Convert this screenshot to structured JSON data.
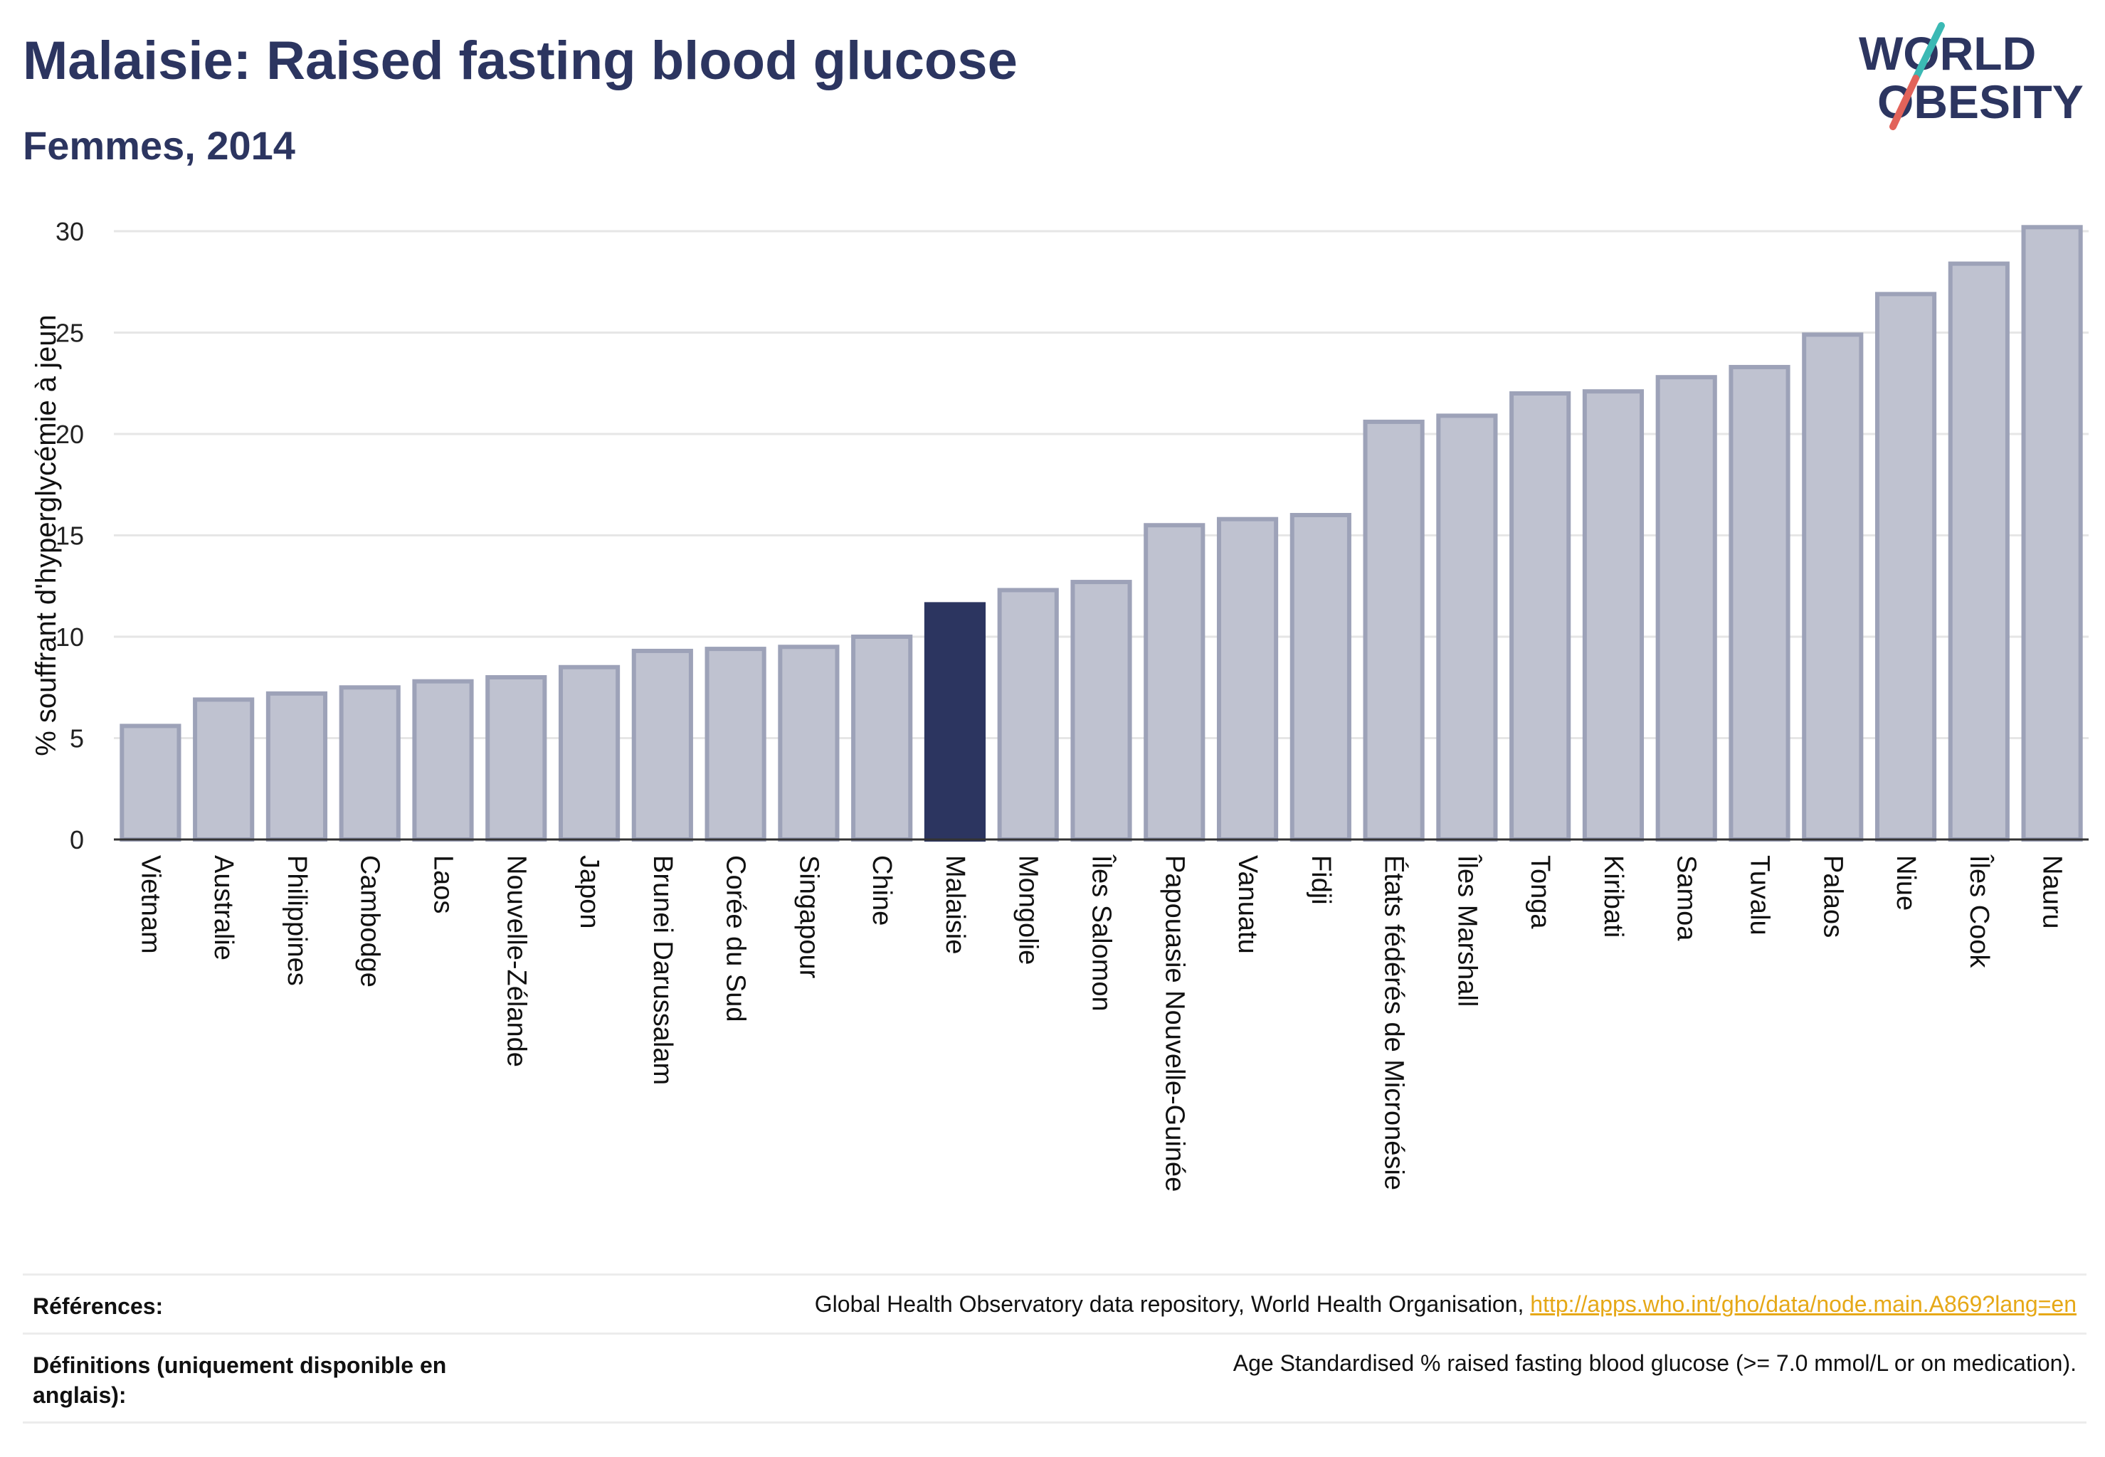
{
  "header": {
    "title": "Malaisie: Raised fasting blood glucose",
    "subtitle": "Femmes, 2014"
  },
  "logo": {
    "line1": "WORLD",
    "line2": "OBESITY"
  },
  "colors": {
    "highlight": "#2c3560",
    "bar_fill": "#bfc2d0",
    "bar_stroke": "#9da2b8",
    "grid": "#e6e6e6",
    "logo_text": "#2c3560",
    "logo_slash_teal": "#3bb9b4",
    "logo_slash_red": "#e2635a"
  },
  "chart_data": {
    "type": "bar",
    "title": "Malaisie: Raised fasting blood glucose",
    "subtitle": "Femmes, 2014",
    "xlabel": "",
    "ylabel": "% souffrant d'hyperglycémie à jeun",
    "ylim": [
      0,
      30
    ],
    "yticks": [
      0,
      5,
      10,
      15,
      20,
      25,
      30
    ],
    "grid": true,
    "highlight_category": "Malaisie",
    "categories": [
      "Vietnam",
      "Australie",
      "Philippines",
      "Cambodge",
      "Laos",
      "Nouvelle-Zélande",
      "Japon",
      "Brunei Darussalam",
      "Corée du Sud",
      "Singapour",
      "Chine",
      "Malaisie",
      "Mongolie",
      "Îles Salomon",
      "Papouasie Nouvelle-Guinée",
      "Vanuatu",
      "Fidji",
      "États fédérés de Micronésie",
      "Îles Marshall",
      "Tonga",
      "Kiribati",
      "Samoa",
      "Tuvalu",
      "Palaos",
      "Niue",
      "Îles Cook",
      "Nauru"
    ],
    "values": [
      5.6,
      6.9,
      7.2,
      7.5,
      7.8,
      8.0,
      8.5,
      9.3,
      9.4,
      9.5,
      10.0,
      11.6,
      12.3,
      12.7,
      15.5,
      15.8,
      16.0,
      20.6,
      20.9,
      22.0,
      22.1,
      22.8,
      23.3,
      24.9,
      26.9,
      28.4,
      30.2
    ]
  },
  "footer": {
    "references_label": "Références:",
    "references_text": "Global Health Observatory data repository, World Health Organisation, ",
    "references_link": "http://apps.who.int/gho/data/node.main.A869?lang=en",
    "definitions_label": "Définitions (uniquement disponible en anglais):",
    "definitions_text": "Age Standardised % raised fasting blood glucose (>= 7.0 mmol/L or on medication)."
  }
}
